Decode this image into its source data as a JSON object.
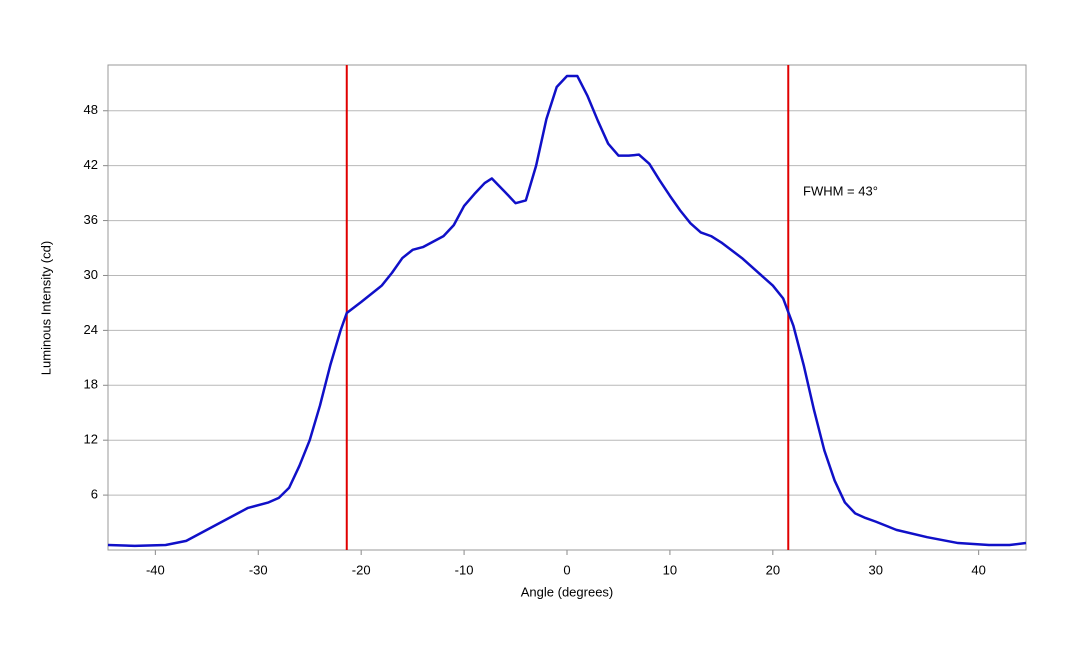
{
  "chart_data": {
    "type": "line",
    "x_label": "Angle (degrees)",
    "y_label": "Luminous Intensity (cd)",
    "annotation": "FWHM = 43°",
    "x": [
      -44.6,
      -42,
      -39,
      -37,
      -35,
      -33,
      -31,
      -29,
      -28,
      -27,
      -26,
      -25,
      -24,
      -23,
      -22,
      -21.4,
      -20,
      -18,
      -17,
      -16,
      -15,
      -14,
      -12,
      -11,
      -10,
      -9,
      -8,
      -7.3,
      -6,
      -5,
      -4,
      -3,
      -2,
      -1,
      0,
      1,
      2,
      3,
      4,
      5,
      6,
      7,
      8,
      9,
      10,
      11,
      12,
      13,
      14,
      15,
      17,
      19,
      20,
      21,
      22,
      23,
      24,
      25,
      26,
      27,
      28,
      29,
      30,
      32,
      35,
      38,
      41,
      43,
      44.6
    ],
    "series": [
      {
        "color": "#1010c8",
        "values": [
          0.55,
          0.45,
          0.55,
          1.0,
          2.2,
          3.4,
          4.6,
          5.2,
          5.7,
          6.8,
          9.2,
          12,
          15.8,
          20.2,
          24,
          25.9,
          27.1,
          28.9,
          30.3,
          31.9,
          32.8,
          33.1,
          34.3,
          35.5,
          37.6,
          38.9,
          40.1,
          40.6,
          39.1,
          37.9,
          38.2,
          42,
          47.1,
          50.6,
          51.8,
          51.8,
          49.6,
          46.9,
          44.4,
          43.1,
          43.1,
          43.2,
          42.2,
          40.4,
          38.7,
          37.1,
          35.7,
          34.7,
          34.3,
          33.6,
          31.9,
          29.9,
          28.9,
          27.5,
          24.5,
          20.2,
          15.3,
          10.9,
          7.6,
          5.2,
          4.0,
          3.5,
          3.1,
          2.2,
          1.4,
          0.76,
          0.55,
          0.55,
          0.76
        ]
      }
    ],
    "vlines": {
      "values": [
        -21.4,
        21.5
      ],
      "color": "#e00000"
    },
    "xlim": [
      -44.6,
      44.6
    ],
    "xticks": [
      -40,
      -30,
      -20,
      -10,
      0,
      10,
      20,
      30,
      40
    ],
    "ylim": [
      0,
      53
    ],
    "yticks": [
      6,
      12,
      18,
      24,
      30,
      36,
      42,
      48
    ],
    "grid": true
  }
}
